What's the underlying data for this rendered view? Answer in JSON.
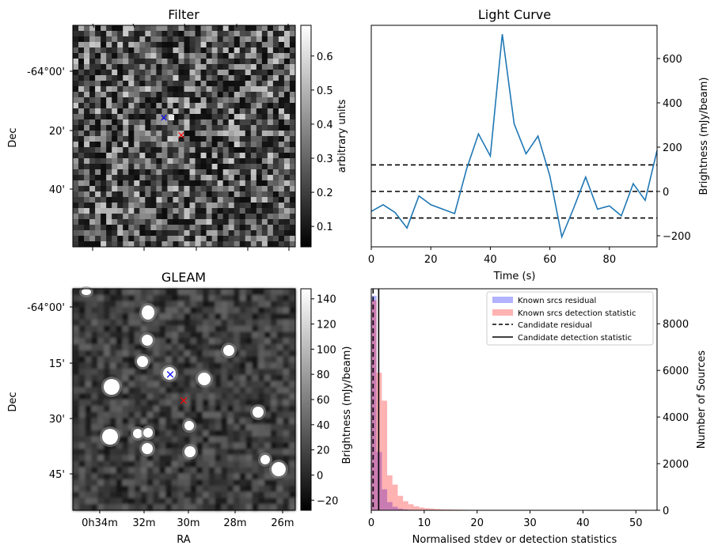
{
  "chart_data": [
    {
      "panel": "filter",
      "type": "heatmap",
      "title": "Filter",
      "xlabel": "",
      "ylabel": "Dec",
      "y_tick_labels": [
        "-64°00'",
        "20'",
        "40'"
      ],
      "colorbar": {
        "label": "arbitrary units",
        "range": [
          0.04,
          0.69
        ],
        "ticks": [
          0.1,
          0.2,
          0.3,
          0.4,
          0.5,
          0.6
        ],
        "tick_labels": [
          "0.1",
          "0.2",
          "0.3",
          "0.4",
          "0.5",
          "0.6"
        ]
      },
      "markers": [
        {
          "name": "blue-cross",
          "color": "#0000ff",
          "symbol": "×"
        },
        {
          "name": "red-cross",
          "color": "#ff0000",
          "symbol": "×"
        }
      ]
    },
    {
      "panel": "light-curve",
      "type": "line",
      "title": "Light Curve",
      "xlabel": "Time (s)",
      "ylabel": "Brightness (mJy/beam)",
      "xlim": [
        0,
        96
      ],
      "ylim": [
        -250,
        750
      ],
      "x_ticks": [
        0,
        20,
        40,
        60,
        80
      ],
      "y_ticks": [
        -200,
        0,
        200,
        400,
        600
      ],
      "x": [
        0,
        4,
        8,
        12,
        16,
        20,
        24,
        28,
        32,
        36,
        40,
        44,
        48,
        52,
        56,
        60,
        64,
        68,
        72,
        76,
        80,
        84,
        88,
        92,
        96
      ],
      "y": [
        -90,
        -60,
        -95,
        -165,
        -20,
        -60,
        -80,
        -100,
        100,
        260,
        160,
        710,
        305,
        170,
        250,
        70,
        -205,
        -75,
        65,
        -80,
        -65,
        -110,
        35,
        -40,
        185
      ],
      "hlines": [
        120,
        0,
        -120
      ],
      "line_color": "#1f77b4"
    },
    {
      "panel": "gleam",
      "type": "heatmap",
      "title": "GLEAM",
      "xlabel": "RA",
      "ylabel": "Dec",
      "x_tick_labels": [
        "0h34m",
        "32m",
        "30m",
        "28m",
        "26m"
      ],
      "y_tick_labels": [
        "-64°00'",
        "15'",
        "30'",
        "45'"
      ],
      "colorbar": {
        "label": "Brightness (mJy/beam)",
        "range": [
          -28,
          148
        ],
        "ticks": [
          -20,
          0,
          20,
          40,
          60,
          80,
          100,
          120,
          140
        ],
        "tick_labels": [
          "−20",
          "0",
          "20",
          "40",
          "60",
          "80",
          "100",
          "120",
          "140"
        ]
      },
      "markers": [
        {
          "name": "blue-cross",
          "color": "#0000ff",
          "symbol": "×"
        },
        {
          "name": "red-cross",
          "color": "#ff0000",
          "symbol": "×"
        }
      ]
    },
    {
      "panel": "histogram",
      "type": "bar",
      "title": "",
      "xlabel": "Normalised stdev or detection statistics",
      "ylabel": "Number of Sources",
      "xlim": [
        0,
        54
      ],
      "ylim": [
        0,
        9500
      ],
      "x_ticks": [
        0,
        10,
        20,
        30,
        40,
        50
      ],
      "y_ticks": [
        0,
        2000,
        4000,
        6000,
        8000
      ],
      "bin_width": 1,
      "series": [
        {
          "name": "Known srcs residual",
          "color": "#0000ff",
          "alpha": 0.3,
          "values": [
            9200,
            2500,
            900,
            350,
            150,
            70,
            35,
            20,
            10,
            5
          ]
        },
        {
          "name": "Known srcs detection statistic",
          "color": "#ff0000",
          "alpha": 0.3,
          "values": [
            9000,
            5900,
            4700,
            1500,
            1100,
            620,
            390,
            260,
            170,
            120,
            90,
            70,
            55,
            45,
            38,
            32,
            28,
            24,
            20,
            18,
            16,
            14,
            12,
            11,
            10,
            9,
            8,
            7,
            6,
            5,
            5,
            4,
            4,
            3,
            3,
            3,
            2,
            2,
            2,
            2,
            2,
            2,
            1,
            1,
            1,
            1,
            1,
            1,
            1,
            1,
            1,
            1,
            1
          ]
        }
      ],
      "vlines": [
        {
          "name": "Candidate residual",
          "x": 0.35,
          "style": "dashed"
        },
        {
          "name": "Candidate detection statistic",
          "x": 1.4,
          "style": "solid"
        }
      ],
      "legend": [
        "Known srcs residual",
        "Known srcs detection statistic",
        "Candidate residual",
        "Candidate detection statistic"
      ],
      "legend_position": "top-right"
    }
  ]
}
